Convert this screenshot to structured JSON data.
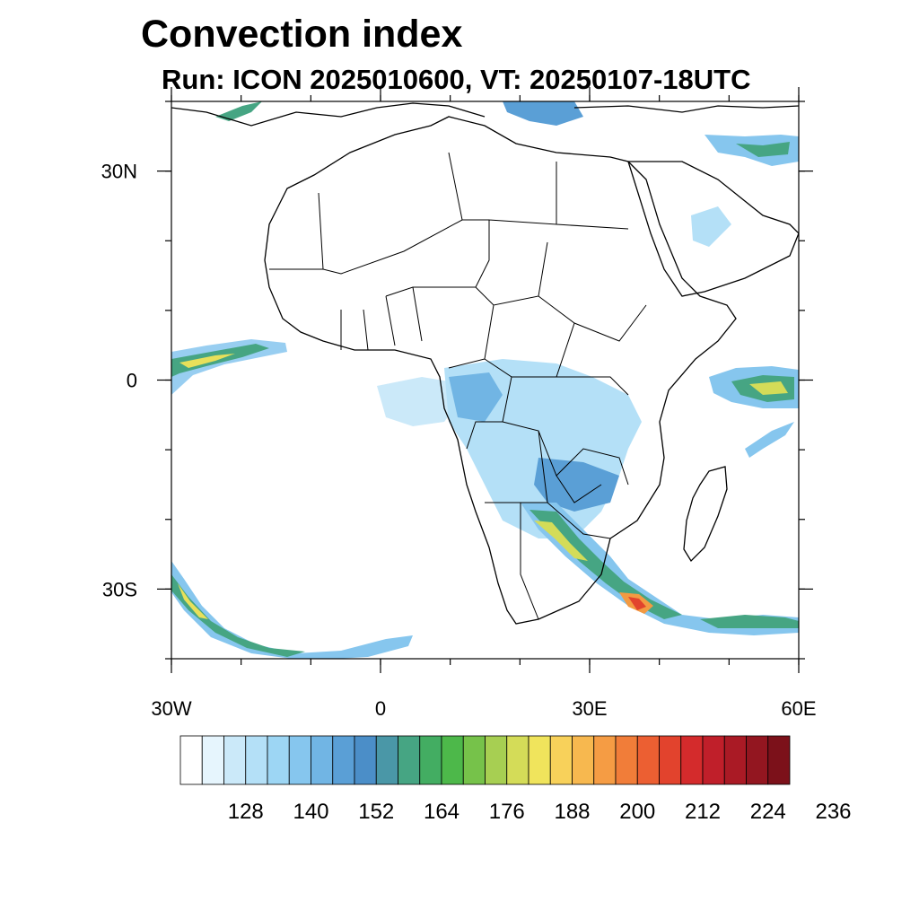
{
  "title": "Convection index",
  "subtitle": "Run: ICON 2025010600,  VT: 20250107-18UTC",
  "map": {
    "lon_range": [
      -30,
      60
    ],
    "lat_range": [
      -40,
      40
    ],
    "lon_ticks": [
      {
        "lon": -30,
        "label": "30W"
      },
      {
        "lon": 0,
        "label": "0"
      },
      {
        "lon": 30,
        "label": "30E"
      },
      {
        "lon": 60,
        "label": "60E"
      }
    ],
    "lat_ticks": [
      {
        "lat": 30,
        "label": "30N"
      },
      {
        "lat": 0,
        "label": "0"
      },
      {
        "lat": -30,
        "label": "30S"
      }
    ],
    "minor_lon_step": 10,
    "minor_lat_step": 10
  },
  "colorbar": {
    "colors": [
      "#ffffff",
      "#e6f5fd",
      "#cbe9f9",
      "#b4e0f7",
      "#9dd6f4",
      "#86c6ee",
      "#71b5e4",
      "#5a9fd6",
      "#4b8ec8",
      "#4a97a7",
      "#46a583",
      "#43ad62",
      "#4db84a",
      "#76c24a",
      "#a7cf52",
      "#d4dc58",
      "#f0e45c",
      "#f8d15a",
      "#f7b84f",
      "#f59c44",
      "#f17d39",
      "#ec5f32",
      "#e2432d",
      "#d42b2c",
      "#c01f2a",
      "#aa1a25",
      "#931620",
      "#7c111a"
    ],
    "labels": [
      "128",
      "140",
      "152",
      "164",
      "176",
      "188",
      "200",
      "212",
      "224",
      "236"
    ]
  },
  "fields": {
    "colors": {
      "low": "#a8d8f2",
      "mid": "#5b9fd6",
      "green": "#46a583",
      "yellow": "#e8e05a",
      "orange": "#f39a42",
      "red": "#e2432d"
    }
  }
}
